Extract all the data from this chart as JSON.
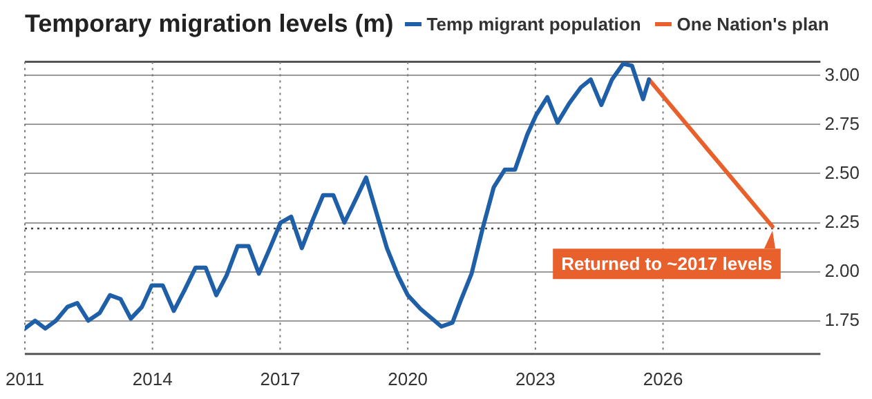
{
  "chart_data": {
    "type": "line",
    "title": "Temporary migration levels (m)",
    "series": [
      {
        "name": "Temp migrant population",
        "color": "#1f5fa8",
        "x": [
          2011.0,
          2011.24,
          2011.48,
          2011.73,
          2012.0,
          2012.23,
          2012.49,
          2012.76,
          2013.0,
          2013.25,
          2013.49,
          2013.75,
          2013.98,
          2014.24,
          2014.5,
          2014.74,
          2015.01,
          2015.25,
          2015.5,
          2015.74,
          2016.0,
          2016.26,
          2016.5,
          2016.76,
          2017.01,
          2017.26,
          2017.51,
          2017.76,
          2018.01,
          2018.25,
          2018.51,
          2018.78,
          2019.02,
          2019.25,
          2019.51,
          2019.77,
          2020.0,
          2020.3,
          2020.79,
          2021.05,
          2021.24,
          2021.5,
          2021.76,
          2022.02,
          2022.28,
          2022.52,
          2022.81,
          2023.02,
          2023.28,
          2023.52,
          2023.8,
          2024.07,
          2024.3,
          2024.55,
          2024.8,
          2025.06,
          2025.27,
          2025.53,
          2025.67
        ],
        "values": [
          1.71,
          1.75,
          1.71,
          1.75,
          1.82,
          1.84,
          1.75,
          1.79,
          1.88,
          1.86,
          1.76,
          1.82,
          1.93,
          1.93,
          1.8,
          1.9,
          2.02,
          2.02,
          1.88,
          1.98,
          2.13,
          2.13,
          1.99,
          2.12,
          2.25,
          2.28,
          2.12,
          2.26,
          2.39,
          2.39,
          2.25,
          2.37,
          2.48,
          2.31,
          2.12,
          1.98,
          1.88,
          1.81,
          1.72,
          1.74,
          1.85,
          1.99,
          2.22,
          2.43,
          2.52,
          2.52,
          2.7,
          2.8,
          2.89,
          2.76,
          2.86,
          2.94,
          2.98,
          2.85,
          2.98,
          3.06,
          3.05,
          2.88,
          2.98
        ]
      },
      {
        "name": "One Nation's plan",
        "color": "#e8602c",
        "x": [
          2025.67,
          2028.57
        ],
        "values": [
          2.98,
          2.23
        ]
      }
    ],
    "xlim": [
      2011,
      2029.7
    ],
    "xticks": [
      2011,
      2014,
      2017,
      2020,
      2023,
      2026
    ],
    "ylim": [
      1.58,
      3.07
    ],
    "yticks": [
      {
        "value": 1.75,
        "label": "1.75"
      },
      {
        "value": 2,
        "label": "2.00"
      },
      {
        "value": 2.25,
        "label": "2.25"
      },
      {
        "value": 2.5,
        "label": "2.50"
      },
      {
        "value": 2.75,
        "label": "2.75"
      },
      {
        "value": 3,
        "label": "3.00"
      }
    ],
    "ref_lines": [
      {
        "axis": "y",
        "value": 2.22,
        "line_style": "dotted",
        "color": "#444444"
      }
    ],
    "annotations": [
      {
        "text": "Returned to ~2017 levels",
        "x": 2028.57,
        "y": 2.23
      }
    ],
    "grid": true,
    "legend": "top",
    "marker": "none",
    "line_style": "solid"
  }
}
